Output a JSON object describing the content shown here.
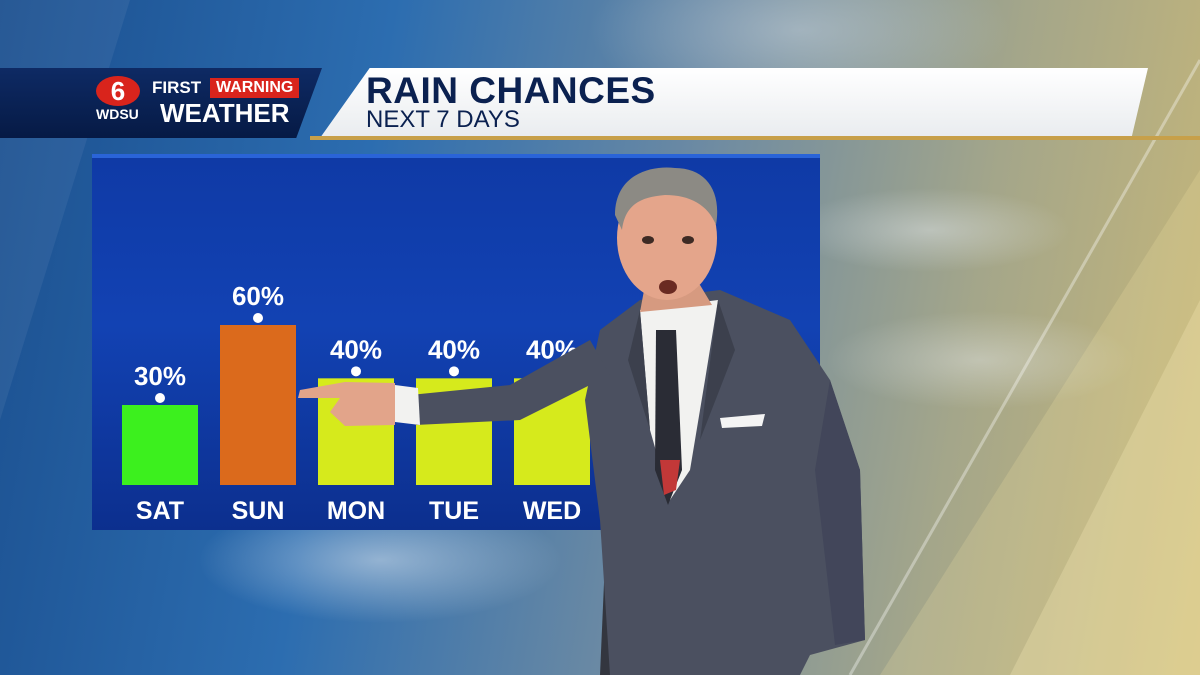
{
  "header": {
    "logo_number": "6",
    "logo_station": "WDSU",
    "logo_first": "FIRST",
    "logo_warning": "WARNING",
    "logo_weather": "WEATHER",
    "title": "RAIN CHANCES",
    "subtitle": "NEXT 7 DAYS"
  },
  "colors": {
    "navy": "#0b2150",
    "brand_red": "#d9241c",
    "gold": "#c7a04a",
    "panel_blue": "#1242b3"
  },
  "chart_data": {
    "type": "bar",
    "title": "RAIN CHANCES",
    "subtitle": "NEXT 7 DAYS",
    "categories": [
      "SAT",
      "SUN",
      "MON",
      "TUE",
      "WED"
    ],
    "values": [
      30,
      60,
      40,
      40,
      40
    ],
    "labels": [
      "30%",
      "60%",
      "40%",
      "40%",
      "40%"
    ],
    "bar_colors": [
      "#3cf01e",
      "#db6a1c",
      "#d6ea1c",
      "#d6ea1c",
      "#d6ea1c"
    ],
    "ylim": [
      0,
      100
    ],
    "grid": false,
    "legend": "none"
  },
  "presenter": {
    "description_icon": "meteorologist-figure"
  }
}
